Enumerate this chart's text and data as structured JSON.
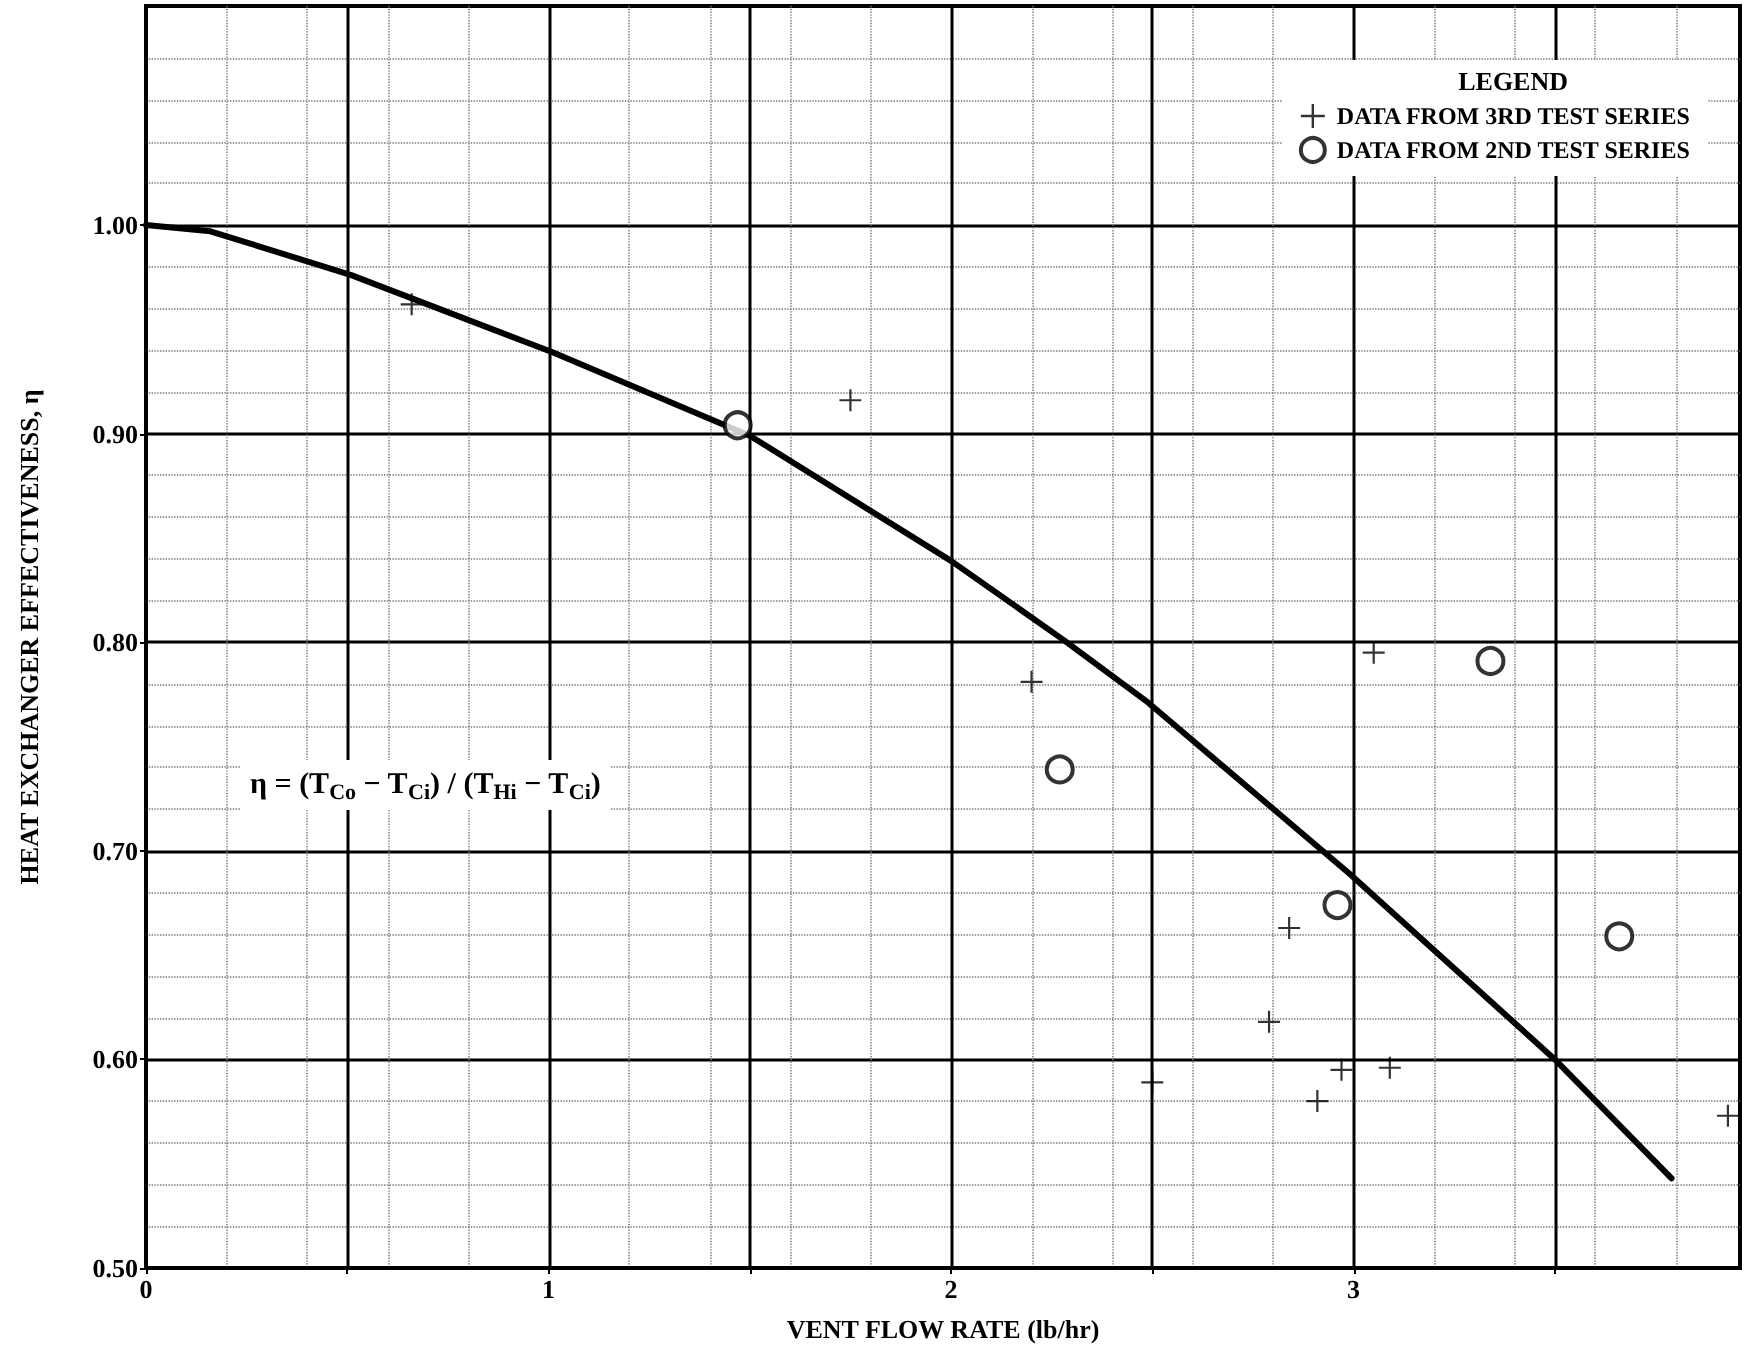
{
  "chart_data": {
    "type": "scatter",
    "xlabel": "VENT FLOW RATE (lb/hr)",
    "ylabel": "HEAT EXCHANGER EFFECTIVENESS, η",
    "legend_title": "LEGEND",
    "annotations": [
      "η = (T$_{Co}$ − T$_{Ci}$) / (T$_{Hi}$ − T$_{Ci}$)"
    ],
    "xlim": [
      0,
      3.96
    ],
    "ylim": [
      0.5,
      1.105
    ],
    "xticks": [
      0,
      {
        "value": 0.5,
        "label": null
      },
      1,
      {
        "value": 1.5,
        "label": null
      },
      2,
      {
        "value": 2.5,
        "label": null
      },
      3,
      {
        "value": 3.5,
        "label": null
      }
    ],
    "yticks": [
      {
        "value": 0.5,
        "label": "0.50"
      },
      {
        "value": 0.6,
        "label": "0.60"
      },
      {
        "value": 0.7,
        "label": "0.70"
      },
      {
        "value": 0.8,
        "label": "0.80"
      },
      {
        "value": 0.9,
        "label": "0.90"
      },
      {
        "value": 1.0,
        "label": "1.00"
      }
    ],
    "grid": true,
    "legend": "top right",
    "series": [
      {
        "type": "line",
        "color": "#000000",
        "marker": "none",
        "line_style": "solid",
        "x": [
          0,
          0.16,
          0.51,
          1.01,
          1.5,
          2.0,
          2.28,
          2.49,
          2.99,
          3.5,
          3.79
        ],
        "values": [
          1.0,
          0.997,
          0.976,
          0.939,
          0.899,
          0.839,
          0.801,
          0.771,
          0.689,
          0.6,
          0.543
        ]
      },
      {
        "name": "DATA FROM 3RD TEST SERIES",
        "color": "#000000",
        "marker": "cross",
        "x": [
          0.66,
          1.75,
          2.2,
          3.05,
          2.84,
          2.79,
          2.5,
          2.91,
          2.97,
          3.09,
          3.93
        ],
        "values": [
          0.962,
          0.916,
          0.781,
          0.795,
          0.663,
          0.618,
          0.589,
          0.58,
          0.595,
          0.596,
          0.573
        ]
      },
      {
        "name": "DATA FROM 2ND TEST SERIES",
        "color": "#000000",
        "marker": "circle",
        "x": [
          1.47,
          2.27,
          3.34,
          2.96,
          3.66
        ],
        "values": [
          0.904,
          0.739,
          0.791,
          0.674,
          0.659
        ]
      }
    ]
  }
}
